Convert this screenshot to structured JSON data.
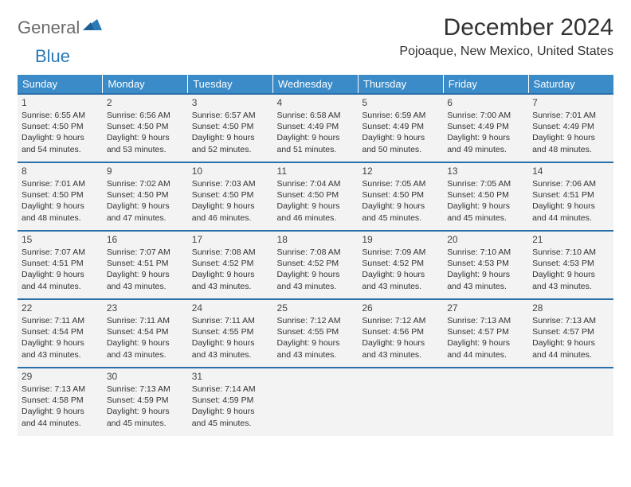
{
  "brand": {
    "part1": "General",
    "part2": "Blue"
  },
  "title": "December 2024",
  "location": "Pojoaque, New Mexico, United States",
  "colors": {
    "header_bg": "#3b8bc8",
    "header_text": "#ffffff",
    "row_border": "#2a6fa8",
    "cell_bg": "#f3f3f3",
    "logo_gray": "#6b6b6b",
    "logo_blue": "#2a7ab8"
  },
  "day_headers": [
    "Sunday",
    "Monday",
    "Tuesday",
    "Wednesday",
    "Thursday",
    "Friday",
    "Saturday"
  ],
  "weeks": [
    [
      {
        "n": "1",
        "sr": "6:55 AM",
        "ss": "4:50 PM",
        "dl": "9 hours and 54 minutes."
      },
      {
        "n": "2",
        "sr": "6:56 AM",
        "ss": "4:50 PM",
        "dl": "9 hours and 53 minutes."
      },
      {
        "n": "3",
        "sr": "6:57 AM",
        "ss": "4:50 PM",
        "dl": "9 hours and 52 minutes."
      },
      {
        "n": "4",
        "sr": "6:58 AM",
        "ss": "4:49 PM",
        "dl": "9 hours and 51 minutes."
      },
      {
        "n": "5",
        "sr": "6:59 AM",
        "ss": "4:49 PM",
        "dl": "9 hours and 50 minutes."
      },
      {
        "n": "6",
        "sr": "7:00 AM",
        "ss": "4:49 PM",
        "dl": "9 hours and 49 minutes."
      },
      {
        "n": "7",
        "sr": "7:01 AM",
        "ss": "4:49 PM",
        "dl": "9 hours and 48 minutes."
      }
    ],
    [
      {
        "n": "8",
        "sr": "7:01 AM",
        "ss": "4:50 PM",
        "dl": "9 hours and 48 minutes."
      },
      {
        "n": "9",
        "sr": "7:02 AM",
        "ss": "4:50 PM",
        "dl": "9 hours and 47 minutes."
      },
      {
        "n": "10",
        "sr": "7:03 AM",
        "ss": "4:50 PM",
        "dl": "9 hours and 46 minutes."
      },
      {
        "n": "11",
        "sr": "7:04 AM",
        "ss": "4:50 PM",
        "dl": "9 hours and 46 minutes."
      },
      {
        "n": "12",
        "sr": "7:05 AM",
        "ss": "4:50 PM",
        "dl": "9 hours and 45 minutes."
      },
      {
        "n": "13",
        "sr": "7:05 AM",
        "ss": "4:50 PM",
        "dl": "9 hours and 45 minutes."
      },
      {
        "n": "14",
        "sr": "7:06 AM",
        "ss": "4:51 PM",
        "dl": "9 hours and 44 minutes."
      }
    ],
    [
      {
        "n": "15",
        "sr": "7:07 AM",
        "ss": "4:51 PM",
        "dl": "9 hours and 44 minutes."
      },
      {
        "n": "16",
        "sr": "7:07 AM",
        "ss": "4:51 PM",
        "dl": "9 hours and 43 minutes."
      },
      {
        "n": "17",
        "sr": "7:08 AM",
        "ss": "4:52 PM",
        "dl": "9 hours and 43 minutes."
      },
      {
        "n": "18",
        "sr": "7:08 AM",
        "ss": "4:52 PM",
        "dl": "9 hours and 43 minutes."
      },
      {
        "n": "19",
        "sr": "7:09 AM",
        "ss": "4:52 PM",
        "dl": "9 hours and 43 minutes."
      },
      {
        "n": "20",
        "sr": "7:10 AM",
        "ss": "4:53 PM",
        "dl": "9 hours and 43 minutes."
      },
      {
        "n": "21",
        "sr": "7:10 AM",
        "ss": "4:53 PM",
        "dl": "9 hours and 43 minutes."
      }
    ],
    [
      {
        "n": "22",
        "sr": "7:11 AM",
        "ss": "4:54 PM",
        "dl": "9 hours and 43 minutes."
      },
      {
        "n": "23",
        "sr": "7:11 AM",
        "ss": "4:54 PM",
        "dl": "9 hours and 43 minutes."
      },
      {
        "n": "24",
        "sr": "7:11 AM",
        "ss": "4:55 PM",
        "dl": "9 hours and 43 minutes."
      },
      {
        "n": "25",
        "sr": "7:12 AM",
        "ss": "4:55 PM",
        "dl": "9 hours and 43 minutes."
      },
      {
        "n": "26",
        "sr": "7:12 AM",
        "ss": "4:56 PM",
        "dl": "9 hours and 43 minutes."
      },
      {
        "n": "27",
        "sr": "7:13 AM",
        "ss": "4:57 PM",
        "dl": "9 hours and 44 minutes."
      },
      {
        "n": "28",
        "sr": "7:13 AM",
        "ss": "4:57 PM",
        "dl": "9 hours and 44 minutes."
      }
    ],
    [
      {
        "n": "29",
        "sr": "7:13 AM",
        "ss": "4:58 PM",
        "dl": "9 hours and 44 minutes."
      },
      {
        "n": "30",
        "sr": "7:13 AM",
        "ss": "4:59 PM",
        "dl": "9 hours and 45 minutes."
      },
      {
        "n": "31",
        "sr": "7:14 AM",
        "ss": "4:59 PM",
        "dl": "9 hours and 45 minutes."
      },
      null,
      null,
      null,
      null
    ]
  ],
  "labels": {
    "sunrise": "Sunrise: ",
    "sunset": "Sunset: ",
    "daylight": "Daylight: "
  }
}
